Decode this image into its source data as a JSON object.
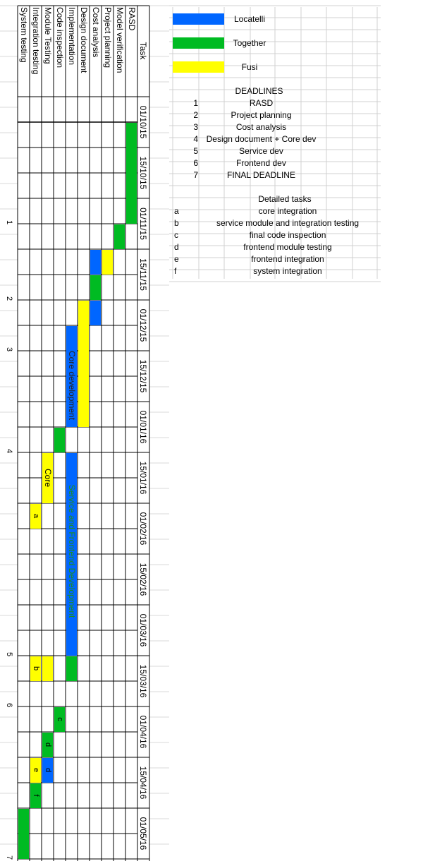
{
  "header": {
    "task": "Task"
  },
  "tasks": [
    "RASD",
    "Model verification",
    "Project planning",
    "Cost analysis",
    "Design document",
    "Implementation",
    "Code inspection",
    "Module Testing",
    "Integration testing",
    "System testing"
  ],
  "dates": [
    "01/10/15",
    "15/10/15",
    "01/11/15",
    "15/11/15",
    "01/12/15",
    "15/12/15",
    "01/01/16",
    "15/01/16",
    "01/02/16",
    "15/02/16",
    "01/03/16",
    "15/03/16",
    "01/04/16",
    "15/04/16",
    "01/05/16"
  ],
  "deadline_marks": [
    "1",
    "2",
    "3",
    "4",
    "5",
    "6",
    "7"
  ],
  "colors": {
    "blue": "#0066ff",
    "green": "#00bb22",
    "yellow": "#ffff00"
  },
  "legend": [
    {
      "label": "Locatelli",
      "color": "#0066ff"
    },
    {
      "label": "Together",
      "color": "#00bb22"
    },
    {
      "label": "Fusi",
      "color": "#ffff00"
    }
  ],
  "deadlines": {
    "title": "DEADLINES",
    "rows": [
      {
        "n": "1",
        "label": "RASD"
      },
      {
        "n": "2",
        "label": "Project planning"
      },
      {
        "n": "3",
        "label": "Cost analysis"
      },
      {
        "n": "4",
        "label": "Design document + Core dev"
      },
      {
        "n": "5",
        "label": "Service dev"
      },
      {
        "n": "6",
        "label": "Frontend dev"
      },
      {
        "n": "7",
        "label": "FINAL DEADLINE"
      }
    ]
  },
  "detailed": {
    "title": "Detailed tasks",
    "rows": [
      {
        "k": "a",
        "label": "core integration"
      },
      {
        "k": "b",
        "label": "service module and integration testing"
      },
      {
        "k": "c",
        "label": "final code inspection"
      },
      {
        "k": "d",
        "label": "frontend module testing"
      },
      {
        "k": "e",
        "label": "frontend integration"
      },
      {
        "k": "f",
        "label": "system integration"
      }
    ]
  },
  "bar_labels": {
    "core_development": "Core development",
    "service_frontend": "Service and Frontend Development",
    "core": "Core",
    "a": "a",
    "b": "b",
    "c": "c",
    "d": "d",
    "e": "e",
    "f": "f"
  }
}
